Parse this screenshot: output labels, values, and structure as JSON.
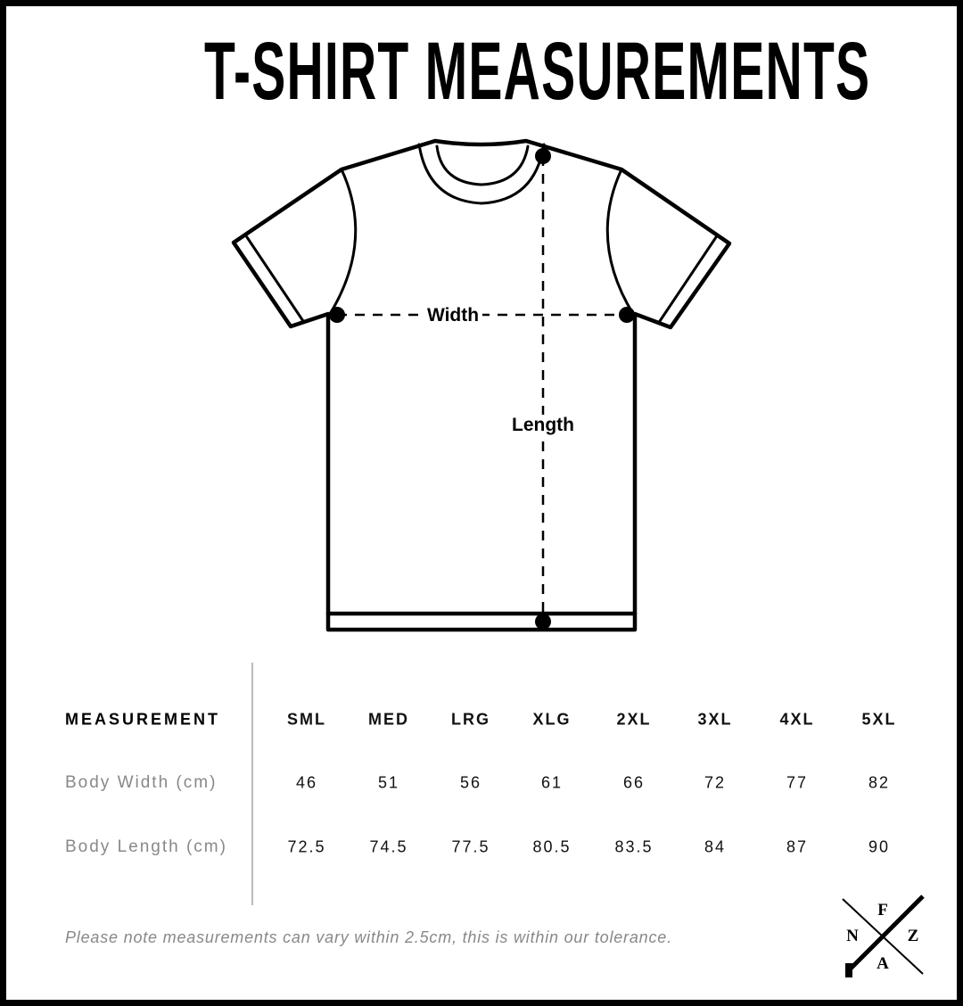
{
  "title": "T-SHIRT MEASUREMENTS",
  "diagram": {
    "width_label": "Width",
    "length_label": "Length"
  },
  "table": {
    "header_label": "MEASUREMENT",
    "sizes": [
      "SML",
      "MED",
      "LRG",
      "XLG",
      "2XL",
      "3XL",
      "4XL",
      "5XL"
    ],
    "rows": [
      {
        "label": "Body Width (cm)",
        "values": [
          "46",
          "51",
          "56",
          "61",
          "66",
          "72",
          "77",
          "82"
        ]
      },
      {
        "label": "Body Length (cm)",
        "values": [
          "72.5",
          "74.5",
          "77.5",
          "80.5",
          "83.5",
          "84",
          "87",
          "90"
        ]
      }
    ]
  },
  "note": "Please note measurements can vary within 2.5cm, this is within our tolerance.",
  "logo": {
    "letters": [
      "F",
      "N",
      "Z",
      "A"
    ]
  }
}
